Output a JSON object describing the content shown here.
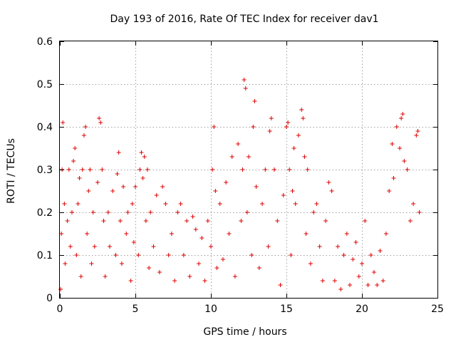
{
  "chart_data": {
    "type": "scatter",
    "title": "Day 193 of 2016, Rate Of TEC Index for receiver dav1",
    "xlabel": "GPS time / hours",
    "ylabel": "ROTI / TECUs",
    "xlim": [
      0,
      25
    ],
    "ylim": [
      0,
      0.6
    ],
    "x_ticks": [
      0,
      5,
      10,
      15,
      20,
      25
    ],
    "x_tick_labels": [
      "0",
      "5",
      "10",
      "15",
      "20",
      "25"
    ],
    "y_ticks": [
      0,
      0.1,
      0.2,
      0.3,
      0.4,
      0.5,
      0.6
    ],
    "y_tick_labels": [
      "0",
      "0.1",
      "0.2",
      "0.3",
      "0.4",
      "0.5",
      "0.6"
    ],
    "grid": true,
    "marker": "plus",
    "marker_color": "#e00000",
    "series": [
      {
        "name": "ROTI",
        "points": [
          [
            0.05,
            0.02
          ],
          [
            0.1,
            0.15
          ],
          [
            0.15,
            0.3
          ],
          [
            0.2,
            0.41
          ],
          [
            0.3,
            0.22
          ],
          [
            0.35,
            0.08
          ],
          [
            0.5,
            0.18
          ],
          [
            0.6,
            0.3
          ],
          [
            0.7,
            0.12
          ],
          [
            0.8,
            0.2
          ],
          [
            0.9,
            0.32
          ],
          [
            1.0,
            0.35
          ],
          [
            1.1,
            0.1
          ],
          [
            1.2,
            0.22
          ],
          [
            1.3,
            0.28
          ],
          [
            1.4,
            0.05
          ],
          [
            1.5,
            0.3
          ],
          [
            1.6,
            0.38
          ],
          [
            1.7,
            0.4
          ],
          [
            1.8,
            0.15
          ],
          [
            1.9,
            0.25
          ],
          [
            2.0,
            0.3
          ],
          [
            2.1,
            0.08
          ],
          [
            2.2,
            0.2
          ],
          [
            2.3,
            0.12
          ],
          [
            2.5,
            0.27
          ],
          [
            2.6,
            0.42
          ],
          [
            2.7,
            0.41
          ],
          [
            2.8,
            0.3
          ],
          [
            2.9,
            0.18
          ],
          [
            3.0,
            0.05
          ],
          [
            3.2,
            0.2
          ],
          [
            3.3,
            0.12
          ],
          [
            3.5,
            0.25
          ],
          [
            3.7,
            0.1
          ],
          [
            3.8,
            0.29
          ],
          [
            3.9,
            0.34
          ],
          [
            4.0,
            0.18
          ],
          [
            4.1,
            0.08
          ],
          [
            4.2,
            0.26
          ],
          [
            4.4,
            0.15
          ],
          [
            4.5,
            0.2
          ],
          [
            4.7,
            0.04
          ],
          [
            4.8,
            0.22
          ],
          [
            4.9,
            0.13
          ],
          [
            5.0,
            0.26
          ],
          [
            5.2,
            0.1
          ],
          [
            5.3,
            0.3
          ],
          [
            5.4,
            0.34
          ],
          [
            5.5,
            0.28
          ],
          [
            5.6,
            0.33
          ],
          [
            5.7,
            0.18
          ],
          [
            5.8,
            0.3
          ],
          [
            5.9,
            0.07
          ],
          [
            6.0,
            0.2
          ],
          [
            6.2,
            0.12
          ],
          [
            6.4,
            0.24
          ],
          [
            6.6,
            0.06
          ],
          [
            6.8,
            0.26
          ],
          [
            7.0,
            0.22
          ],
          [
            7.2,
            0.1
          ],
          [
            7.4,
            0.15
          ],
          [
            7.6,
            0.04
          ],
          [
            7.8,
            0.2
          ],
          [
            8.0,
            0.22
          ],
          [
            8.2,
            0.1
          ],
          [
            8.4,
            0.18
          ],
          [
            8.6,
            0.05
          ],
          [
            8.8,
            0.19
          ],
          [
            9.0,
            0.16
          ],
          [
            9.2,
            0.08
          ],
          [
            9.4,
            0.14
          ],
          [
            9.6,
            0.04
          ],
          [
            9.8,
            0.18
          ],
          [
            10.0,
            0.12
          ],
          [
            10.1,
            0.3
          ],
          [
            10.2,
            0.4
          ],
          [
            10.3,
            0.25
          ],
          [
            10.4,
            0.07
          ],
          [
            10.6,
            0.22
          ],
          [
            10.8,
            0.09
          ],
          [
            11.0,
            0.27
          ],
          [
            11.2,
            0.15
          ],
          [
            11.4,
            0.33
          ],
          [
            11.6,
            0.05
          ],
          [
            11.8,
            0.36
          ],
          [
            12.0,
            0.18
          ],
          [
            12.1,
            0.3
          ],
          [
            12.2,
            0.51
          ],
          [
            12.3,
            0.49
          ],
          [
            12.4,
            0.2
          ],
          [
            12.5,
            0.33
          ],
          [
            12.7,
            0.1
          ],
          [
            12.8,
            0.4
          ],
          [
            12.9,
            0.46
          ],
          [
            13.0,
            0.26
          ],
          [
            13.2,
            0.07
          ],
          [
            13.4,
            0.22
          ],
          [
            13.6,
            0.3
          ],
          [
            13.8,
            0.12
          ],
          [
            13.9,
            0.39
          ],
          [
            14.0,
            0.42
          ],
          [
            14.2,
            0.3
          ],
          [
            14.4,
            0.18
          ],
          [
            14.6,
            0.03
          ],
          [
            14.8,
            0.24
          ],
          [
            15.0,
            0.4
          ],
          [
            15.1,
            0.41
          ],
          [
            15.2,
            0.3
          ],
          [
            15.3,
            0.1
          ],
          [
            15.4,
            0.25
          ],
          [
            15.5,
            0.35
          ],
          [
            15.6,
            0.22
          ],
          [
            15.8,
            0.38
          ],
          [
            16.0,
            0.44
          ],
          [
            16.1,
            0.42
          ],
          [
            16.2,
            0.33
          ],
          [
            16.3,
            0.15
          ],
          [
            16.4,
            0.3
          ],
          [
            16.6,
            0.08
          ],
          [
            16.8,
            0.2
          ],
          [
            17.0,
            0.22
          ],
          [
            17.2,
            0.12
          ],
          [
            17.4,
            0.04
          ],
          [
            17.6,
            0.18
          ],
          [
            17.8,
            0.27
          ],
          [
            18.0,
            0.25
          ],
          [
            18.2,
            0.04
          ],
          [
            18.4,
            0.12
          ],
          [
            18.6,
            0.02
          ],
          [
            18.8,
            0.1
          ],
          [
            19.0,
            0.15
          ],
          [
            19.2,
            0.03
          ],
          [
            19.4,
            0.09
          ],
          [
            19.6,
            0.13
          ],
          [
            19.8,
            0.05
          ],
          [
            20.0,
            0.08
          ],
          [
            20.2,
            0.18
          ],
          [
            20.4,
            0.03
          ],
          [
            20.6,
            0.1
          ],
          [
            20.8,
            0.06
          ],
          [
            21.0,
            0.03
          ],
          [
            21.2,
            0.11
          ],
          [
            21.4,
            0.04
          ],
          [
            21.6,
            0.15
          ],
          [
            21.8,
            0.25
          ],
          [
            22.0,
            0.36
          ],
          [
            22.1,
            0.28
          ],
          [
            22.3,
            0.4
          ],
          [
            22.5,
            0.35
          ],
          [
            22.6,
            0.42
          ],
          [
            22.7,
            0.43
          ],
          [
            22.8,
            0.32
          ],
          [
            23.0,
            0.3
          ],
          [
            23.2,
            0.18
          ],
          [
            23.4,
            0.22
          ],
          [
            23.6,
            0.38
          ],
          [
            23.7,
            0.39
          ],
          [
            23.8,
            0.2
          ]
        ]
      }
    ]
  }
}
